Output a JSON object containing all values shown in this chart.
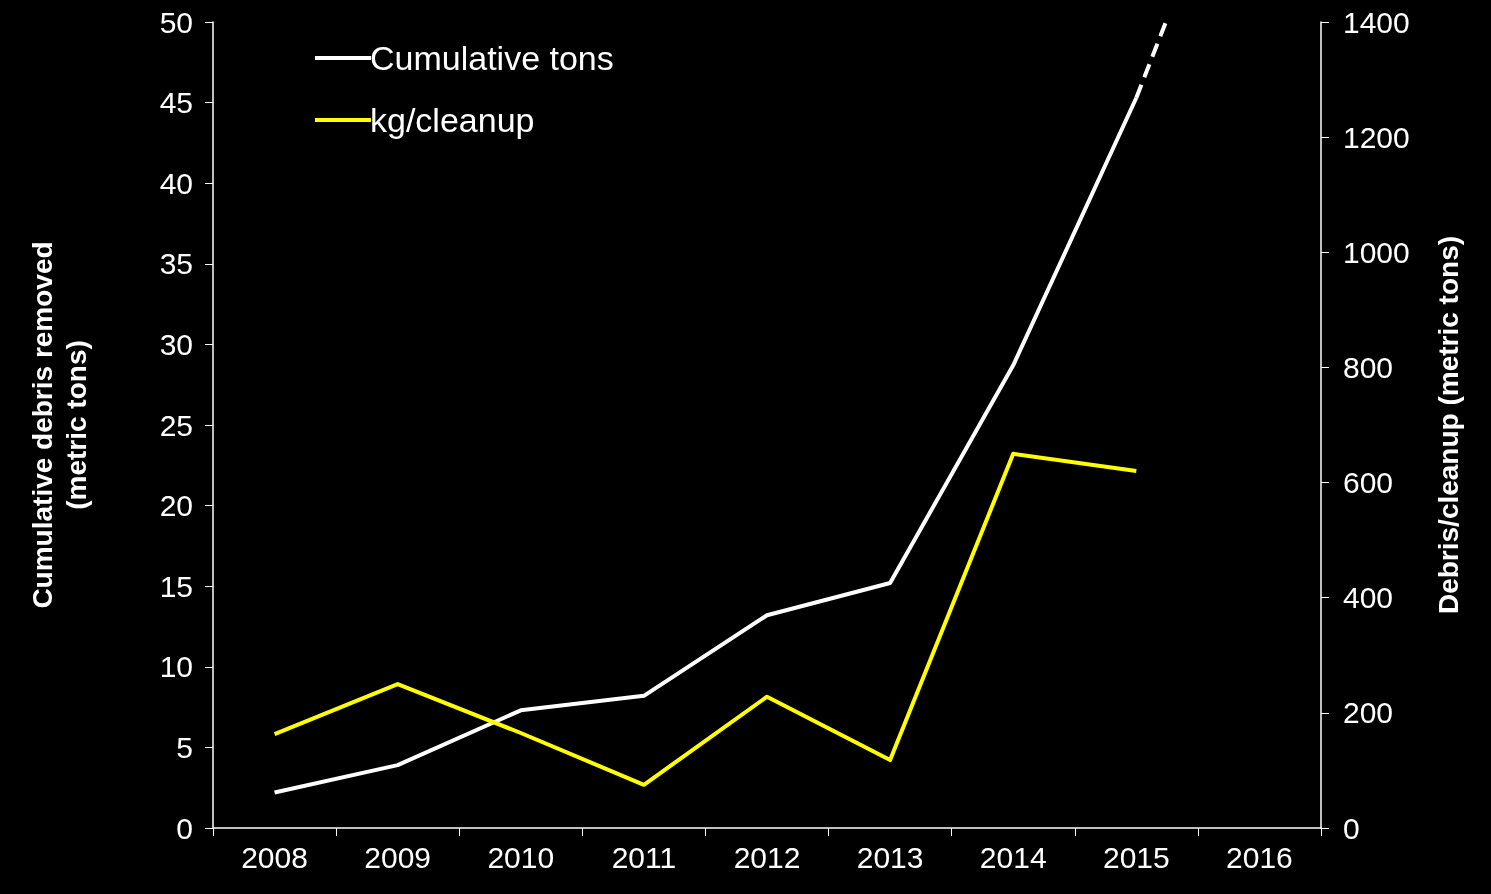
{
  "chart_data": {
    "type": "line",
    "ylabel": "Cumulative debris removed\n(metric tons)",
    "y2label": "Debris/cleanup (metric tons)",
    "x": [
      2008,
      2009,
      2010,
      2011,
      2012,
      2013,
      2014,
      2015
    ],
    "xlim": [
      2007.5,
      2016.5
    ],
    "xticks": [
      {
        "value": 2007.5,
        "label": null
      },
      2008,
      {
        "value": 2008.5,
        "label": null
      },
      2009,
      {
        "value": 2009.5,
        "label": null
      },
      2010,
      {
        "value": 2010.5,
        "label": null
      },
      2011,
      {
        "value": 2011.5,
        "label": null
      },
      2012,
      {
        "value": 2012.5,
        "label": null
      },
      2013,
      {
        "value": 2013.5,
        "label": null
      },
      2014,
      {
        "value": 2014.5,
        "label": null
      },
      2015,
      {
        "value": 2015.5,
        "label": null
      },
      2016,
      {
        "value": 2016.5,
        "label": null
      }
    ],
    "ylim": [
      0,
      50
    ],
    "yticks": [
      0,
      5,
      10,
      15,
      20,
      25,
      30,
      35,
      40,
      45,
      50
    ],
    "y2lim": [
      0,
      1400
    ],
    "y2ticks": [
      0,
      200,
      400,
      600,
      800,
      1000,
      1200,
      1400
    ],
    "series": [
      {
        "name": "Cumulative tons",
        "color": "#ffffff",
        "values": [
          2.2,
          3.9,
          7.3,
          8.2,
          13.2,
          15.2,
          28.7,
          45.3
        ]
      },
      {
        "name": "kg/cleanup",
        "color": "#ffff00",
        "axis": "y2",
        "values": [
          163,
          250,
          165,
          75,
          228,
          118,
          650,
          620
        ]
      },
      {
        "color": "#ffffff",
        "line_style": "dashed",
        "x": [
          2015,
          2015.24
        ],
        "values": [
          45.3,
          50
        ]
      }
    ],
    "legend": "top left",
    "grid": false,
    "marker": "none",
    "line_style": "solid"
  }
}
